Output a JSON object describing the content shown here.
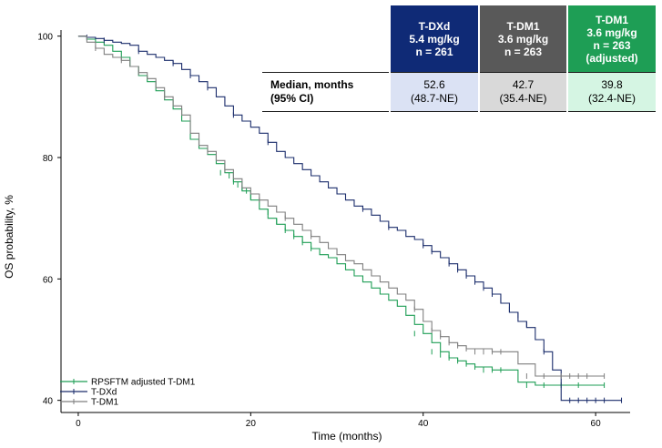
{
  "table": {
    "columns": [
      {
        "lines": [
          "T-DXd",
          "5.4 mg/kg",
          "n = 261"
        ],
        "color": "#0f2a76",
        "cell_color": "#dbe2f4"
      },
      {
        "lines": [
          "T-DM1",
          "3.6 mg/kg",
          "n = 263"
        ],
        "color": "#595959",
        "cell_color": "#d9d9d9"
      },
      {
        "lines": [
          "T-DM1",
          "3.6 mg/kg",
          "n = 263",
          "(adjusted)"
        ],
        "color": "#1e9e55",
        "cell_color": "#d5f5e3"
      }
    ],
    "row_label": [
      "Median, months",
      "(95% CI)"
    ],
    "values": [
      [
        "52.6",
        "(48.7-NE)"
      ],
      [
        "42.7",
        "(35.4-NE)"
      ],
      [
        "39.8",
        "(32.4-NE)"
      ]
    ]
  },
  "chart_data": {
    "type": "line",
    "step": true,
    "xlabel": "Time (months)",
    "ylabel": "OS probability, %",
    "xlim": [
      -2,
      64
    ],
    "ylim": [
      38,
      101
    ],
    "xticks": [
      0,
      20,
      40,
      60
    ],
    "yticks": [
      40,
      60,
      80,
      100
    ],
    "legend_position": "bottom-left",
    "series": [
      {
        "name": "RPSFTM adjusted T-DM1",
        "color": "#1e9e55",
        "points": [
          [
            0,
            100
          ],
          [
            1,
            99.5
          ],
          [
            2,
            99
          ],
          [
            3,
            98.5
          ],
          [
            4,
            97.5
          ],
          [
            5,
            96.5
          ],
          [
            6,
            95
          ],
          [
            7,
            93.5
          ],
          [
            8,
            92.5
          ],
          [
            9,
            91
          ],
          [
            10,
            89.5
          ],
          [
            11,
            88
          ],
          [
            12,
            86
          ],
          [
            13,
            83
          ],
          [
            14,
            81.5
          ],
          [
            15,
            80.5
          ],
          [
            16,
            79
          ],
          [
            17,
            77.5
          ],
          [
            18,
            76
          ],
          [
            19,
            74.5
          ],
          [
            20,
            73
          ],
          [
            21,
            71.5
          ],
          [
            22,
            70
          ],
          [
            23,
            69
          ],
          [
            24,
            68
          ],
          [
            25,
            67
          ],
          [
            26,
            66
          ],
          [
            27,
            65
          ],
          [
            28,
            64
          ],
          [
            29,
            63.5
          ],
          [
            30,
            62.5
          ],
          [
            31,
            61.5
          ],
          [
            32,
            60.5
          ],
          [
            33,
            59.5
          ],
          [
            34,
            58.5
          ],
          [
            35,
            57.5
          ],
          [
            36,
            56.5
          ],
          [
            37,
            55.5
          ],
          [
            38,
            54
          ],
          [
            39,
            52.5
          ],
          [
            40,
            51
          ],
          [
            41,
            49.5
          ],
          [
            42,
            48
          ],
          [
            43,
            47
          ],
          [
            44,
            46.5
          ],
          [
            45,
            46
          ],
          [
            46,
            45.5
          ],
          [
            48,
            45
          ],
          [
            50,
            45
          ],
          [
            51,
            43
          ],
          [
            53,
            42.5
          ],
          [
            55,
            42.5
          ],
          [
            58,
            42.5
          ],
          [
            61,
            42.5
          ]
        ],
        "censored": [
          [
            16.5,
            77.5
          ],
          [
            17.5,
            77
          ],
          [
            18,
            76
          ],
          [
            18.5,
            75.5
          ],
          [
            19,
            75
          ],
          [
            19.5,
            74.5
          ],
          [
            20,
            73.5
          ],
          [
            22,
            71
          ],
          [
            23,
            69.5
          ],
          [
            24,
            68
          ],
          [
            25,
            67
          ],
          [
            26,
            66
          ],
          [
            27,
            65
          ],
          [
            39,
            51
          ],
          [
            41,
            48
          ],
          [
            42,
            47.5
          ],
          [
            43,
            47
          ],
          [
            44,
            46.5
          ],
          [
            45,
            46
          ],
          [
            46,
            45.5
          ],
          [
            47,
            45
          ],
          [
            48,
            45
          ],
          [
            49,
            45
          ],
          [
            52,
            42.5
          ],
          [
            54,
            42.5
          ],
          [
            56,
            42.5
          ],
          [
            58,
            42.5
          ],
          [
            61,
            42.5
          ]
        ]
      },
      {
        "name": "T-DXd",
        "color": "#1a2c6b",
        "points": [
          [
            0,
            100
          ],
          [
            1,
            99.8
          ],
          [
            2,
            99.6
          ],
          [
            3,
            99.3
          ],
          [
            4,
            99
          ],
          [
            5,
            98.8
          ],
          [
            6,
            98.5
          ],
          [
            7,
            97.5
          ],
          [
            8,
            97
          ],
          [
            9,
            96.5
          ],
          [
            10,
            96
          ],
          [
            11,
            95.5
          ],
          [
            12,
            94.5
          ],
          [
            13,
            93.5
          ],
          [
            14,
            92.5
          ],
          [
            15,
            91.5
          ],
          [
            16,
            90
          ],
          [
            17,
            88.5
          ],
          [
            18,
            87
          ],
          [
            19,
            86
          ],
          [
            20,
            85
          ],
          [
            21,
            84
          ],
          [
            22,
            82.5
          ],
          [
            23,
            81
          ],
          [
            24,
            80
          ],
          [
            25,
            79
          ],
          [
            26,
            78
          ],
          [
            27,
            77
          ],
          [
            28,
            76
          ],
          [
            29,
            75
          ],
          [
            30,
            74
          ],
          [
            31,
            73
          ],
          [
            32,
            72
          ],
          [
            33,
            71.5
          ],
          [
            34,
            70.5
          ],
          [
            35,
            69.5
          ],
          [
            36,
            68.5
          ],
          [
            37,
            68
          ],
          [
            38,
            67
          ],
          [
            39,
            66.5
          ],
          [
            40,
            65.5
          ],
          [
            41,
            64.5
          ],
          [
            42,
            63.5
          ],
          [
            43,
            62.5
          ],
          [
            44,
            61.5
          ],
          [
            45,
            60.5
          ],
          [
            46,
            59.5
          ],
          [
            47,
            58.5
          ],
          [
            48,
            57.5
          ],
          [
            49,
            56
          ],
          [
            50,
            54.5
          ],
          [
            51,
            53
          ],
          [
            52,
            52
          ],
          [
            53,
            50
          ],
          [
            54,
            48
          ],
          [
            55,
            45
          ],
          [
            56,
            40
          ],
          [
            58,
            40
          ],
          [
            61,
            40
          ],
          [
            63,
            40
          ]
        ],
        "censored": [
          [
            1,
            99.8
          ],
          [
            3,
            99.3
          ],
          [
            7,
            97.5
          ],
          [
            11,
            95.5
          ],
          [
            13,
            93.5
          ],
          [
            15,
            91.5
          ],
          [
            18,
            87
          ],
          [
            22,
            82.5
          ],
          [
            33,
            71.5
          ],
          [
            36,
            68.5
          ],
          [
            40,
            65.5
          ],
          [
            41,
            64.5
          ],
          [
            43,
            62.5
          ],
          [
            44,
            61.5
          ],
          [
            45,
            60.5
          ],
          [
            46,
            59.5
          ],
          [
            47,
            58.5
          ],
          [
            48,
            57.5
          ],
          [
            49,
            56.5
          ],
          [
            50,
            55
          ],
          [
            51,
            54
          ],
          [
            52,
            52.5
          ],
          [
            54,
            48
          ],
          [
            57,
            40
          ],
          [
            58,
            40
          ],
          [
            59,
            40
          ],
          [
            60,
            40
          ],
          [
            61,
            40
          ],
          [
            63,
            40
          ]
        ]
      },
      {
        "name": "T-DM1",
        "color": "#7f7f7f",
        "points": [
          [
            0,
            100
          ],
          [
            1,
            99
          ],
          [
            2,
            98
          ],
          [
            3,
            97
          ],
          [
            4,
            96.5
          ],
          [
            5,
            96
          ],
          [
            6,
            95
          ],
          [
            7,
            94
          ],
          [
            8,
            93
          ],
          [
            9,
            91.5
          ],
          [
            10,
            90
          ],
          [
            11,
            88.5
          ],
          [
            12,
            87
          ],
          [
            13,
            84
          ],
          [
            14,
            82
          ],
          [
            15,
            81
          ],
          [
            16,
            79.5
          ],
          [
            17,
            78
          ],
          [
            18,
            76.5
          ],
          [
            19,
            75
          ],
          [
            20,
            74
          ],
          [
            21,
            73
          ],
          [
            22,
            72
          ],
          [
            23,
            71
          ],
          [
            24,
            70
          ],
          [
            25,
            69
          ],
          [
            26,
            68
          ],
          [
            27,
            67
          ],
          [
            28,
            66
          ],
          [
            29,
            65
          ],
          [
            30,
            64
          ],
          [
            31,
            63
          ],
          [
            32,
            62.5
          ],
          [
            33,
            61.5
          ],
          [
            34,
            60.5
          ],
          [
            35,
            59.5
          ],
          [
            36,
            58.5
          ],
          [
            37,
            57.5
          ],
          [
            38,
            56.5
          ],
          [
            39,
            55
          ],
          [
            40,
            53
          ],
          [
            41,
            51.5
          ],
          [
            42,
            50.5
          ],
          [
            43,
            49.5
          ],
          [
            44,
            49
          ],
          [
            45,
            48.5
          ],
          [
            48,
            48
          ],
          [
            50,
            48
          ],
          [
            51,
            46
          ],
          [
            53,
            44
          ],
          [
            55,
            44
          ],
          [
            58,
            44
          ],
          [
            61,
            44
          ]
        ],
        "censored": [
          [
            2,
            98
          ],
          [
            5,
            96
          ],
          [
            7,
            94
          ],
          [
            10,
            90
          ],
          [
            15,
            81
          ],
          [
            17,
            78
          ],
          [
            21,
            73
          ],
          [
            24,
            70
          ],
          [
            27,
            67
          ],
          [
            39,
            55
          ],
          [
            41,
            51.5
          ],
          [
            42,
            50.5
          ],
          [
            43,
            49.5
          ],
          [
            44,
            49
          ],
          [
            45,
            48.5
          ],
          [
            46,
            48
          ],
          [
            47,
            48
          ],
          [
            48,
            48
          ],
          [
            49,
            48
          ],
          [
            52,
            44
          ],
          [
            54,
            44
          ],
          [
            56,
            44
          ],
          [
            57,
            44
          ],
          [
            58,
            44
          ],
          [
            59,
            44
          ],
          [
            61,
            44
          ]
        ]
      }
    ]
  }
}
